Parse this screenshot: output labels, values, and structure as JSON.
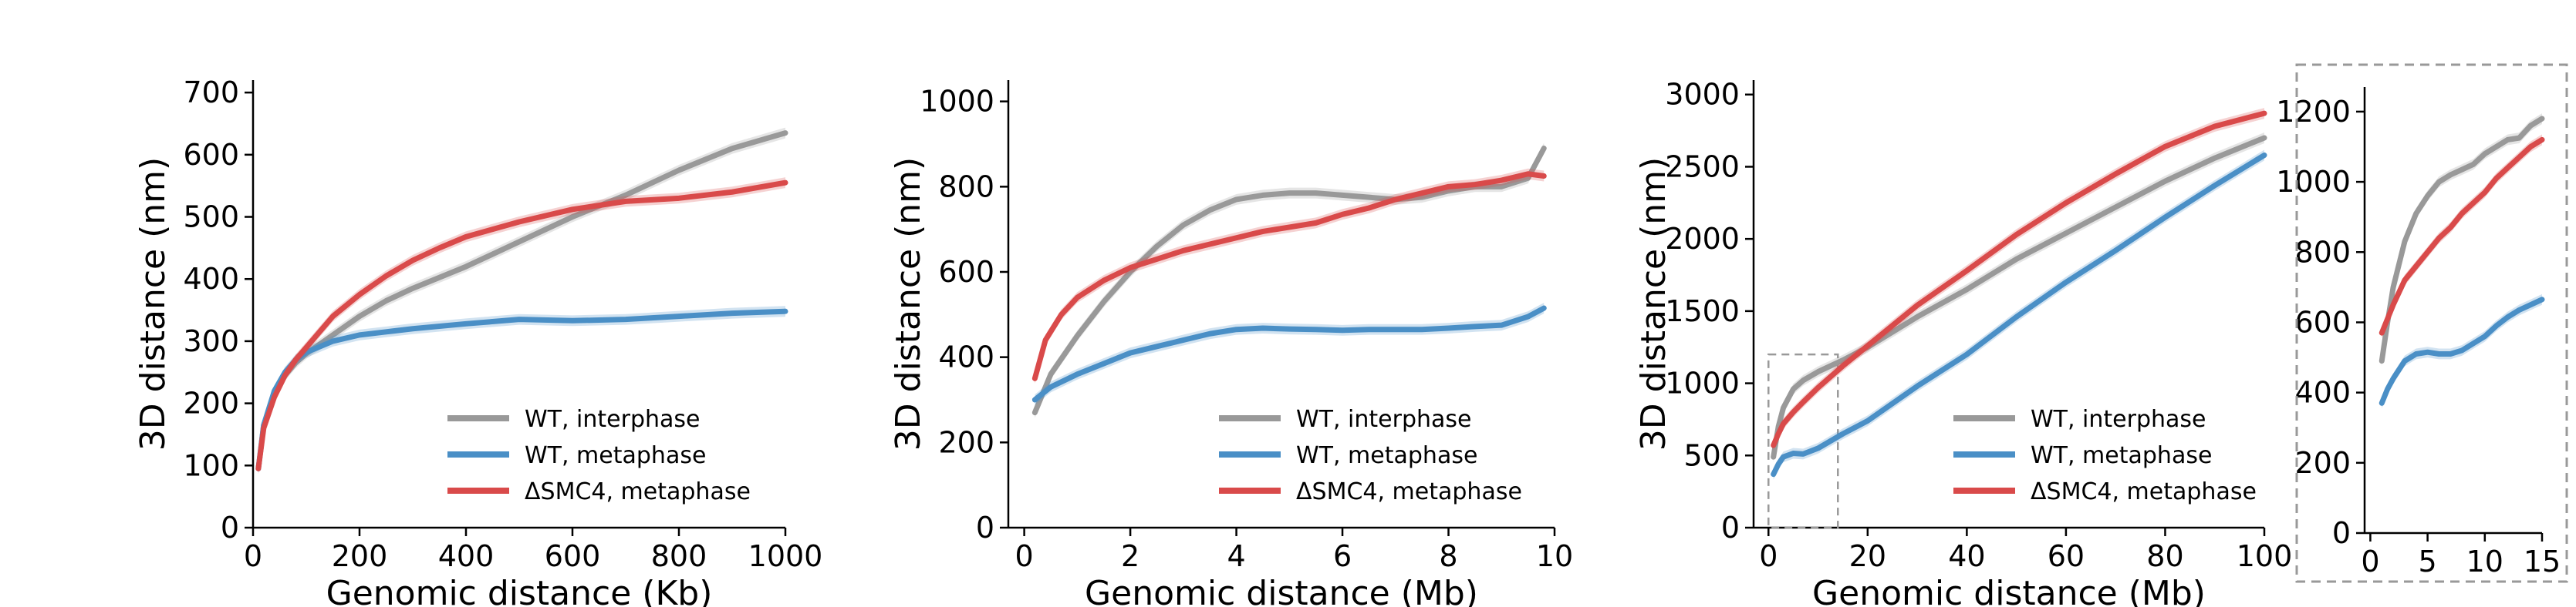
{
  "figure": {
    "colors": {
      "wt_interphase": "#999999",
      "wt_metaphase": "#4a8fc6",
      "dsmc4_metaphase": "#d94a4a",
      "inset_border": "#999999"
    }
  },
  "chart_data": [
    {
      "type": "line",
      "id": "panel-kb",
      "title": "",
      "xlabel": "Genomic distance (Kb)",
      "ylabel": "3D distance (nm)",
      "xlim": [
        0,
        1000
      ],
      "ylim": [
        0,
        720
      ],
      "xticks": [
        0,
        200,
        400,
        600,
        800,
        1000
      ],
      "yticks": [
        0,
        100,
        200,
        300,
        400,
        500,
        600,
        700
      ],
      "legend_position": "lower-right",
      "series": [
        {
          "name": "WT, interphase",
          "color": "#999999",
          "x": [
            10,
            20,
            40,
            60,
            80,
            100,
            150,
            200,
            250,
            300,
            400,
            500,
            600,
            700,
            800,
            900,
            1000
          ],
          "y": [
            95,
            165,
            215,
            245,
            265,
            280,
            310,
            340,
            365,
            385,
            420,
            460,
            500,
            535,
            575,
            610,
            635
          ]
        },
        {
          "name": "WT, metaphase",
          "color": "#4a8fc6",
          "x": [
            10,
            20,
            40,
            60,
            80,
            100,
            150,
            200,
            250,
            300,
            400,
            500,
            600,
            700,
            800,
            900,
            1000
          ],
          "y": [
            95,
            165,
            220,
            250,
            270,
            282,
            300,
            310,
            315,
            320,
            328,
            335,
            333,
            335,
            340,
            345,
            348
          ]
        },
        {
          "name": "ΔSMC4, metaphase",
          "color": "#d94a4a",
          "x": [
            10,
            20,
            40,
            60,
            80,
            100,
            150,
            200,
            250,
            300,
            350,
            400,
            500,
            600,
            700,
            800,
            900,
            1000
          ],
          "y": [
            95,
            160,
            210,
            245,
            270,
            290,
            340,
            375,
            405,
            430,
            450,
            468,
            492,
            512,
            525,
            530,
            540,
            555
          ]
        }
      ]
    },
    {
      "type": "line",
      "id": "panel-mb",
      "title": "",
      "xlabel": "Genomic distance (Mb)",
      "ylabel": "3D distance (nm)",
      "xlim": [
        -0.3,
        10
      ],
      "ylim": [
        0,
        1050
      ],
      "xticks": [
        0,
        2,
        4,
        6,
        8,
        10
      ],
      "yticks": [
        0,
        200,
        400,
        600,
        800,
        1000
      ],
      "legend_position": "lower-right",
      "series": [
        {
          "name": "WT, interphase",
          "color": "#999999",
          "x": [
            0.2,
            0.5,
            1,
            1.5,
            2,
            2.5,
            3,
            3.5,
            4,
            4.5,
            5,
            5.5,
            6,
            6.5,
            7,
            7.5,
            8,
            8.5,
            9,
            9.5,
            9.8
          ],
          "y": [
            270,
            360,
            450,
            530,
            600,
            660,
            710,
            745,
            770,
            780,
            785,
            785,
            780,
            775,
            770,
            775,
            790,
            800,
            800,
            820,
            890
          ]
        },
        {
          "name": "WT, metaphase",
          "color": "#4a8fc6",
          "x": [
            0.2,
            0.5,
            1,
            1.5,
            2,
            2.5,
            3,
            3.5,
            4,
            4.5,
            5,
            5.5,
            6,
            6.5,
            7,
            7.5,
            8,
            8.5,
            9,
            9.5,
            9.8
          ],
          "y": [
            300,
            330,
            360,
            385,
            410,
            425,
            440,
            455,
            465,
            468,
            466,
            465,
            463,
            465,
            465,
            465,
            468,
            472,
            475,
            495,
            515
          ]
        },
        {
          "name": "ΔSMC4, metaphase",
          "color": "#d94a4a",
          "x": [
            0.2,
            0.4,
            0.7,
            1,
            1.5,
            2,
            2.5,
            3,
            3.5,
            4,
            4.5,
            5,
            5.5,
            6,
            6.5,
            7,
            7.5,
            8,
            8.5,
            9,
            9.5,
            9.8
          ],
          "y": [
            350,
            440,
            500,
            540,
            580,
            610,
            630,
            650,
            665,
            680,
            695,
            705,
            715,
            735,
            750,
            770,
            785,
            800,
            805,
            815,
            830,
            825
          ]
        }
      ]
    },
    {
      "type": "line",
      "id": "panel-large-mb",
      "title": "",
      "xlabel": "Genomic distance (Mb)",
      "ylabel": "3D distance (nm)",
      "xlim": [
        -3,
        100
      ],
      "ylim": [
        0,
        3100
      ],
      "xticks": [
        0,
        20,
        40,
        60,
        80,
        100
      ],
      "yticks": [
        0,
        500,
        1000,
        1500,
        2000,
        2500,
        3000
      ],
      "legend_position": "lower-right",
      "zoom_box": {
        "x": [
          0,
          14
        ],
        "y": [
          0,
          1200
        ]
      },
      "series": [
        {
          "name": "WT, interphase",
          "color": "#999999",
          "x": [
            1,
            2,
            3,
            5,
            7,
            10,
            15,
            20,
            30,
            40,
            50,
            60,
            70,
            80,
            90,
            100
          ],
          "y": [
            490,
            700,
            830,
            960,
            1020,
            1080,
            1160,
            1250,
            1460,
            1650,
            1860,
            2040,
            2220,
            2400,
            2560,
            2700
          ]
        },
        {
          "name": "WT, metaphase",
          "color": "#4a8fc6",
          "x": [
            1,
            2,
            3,
            5,
            7,
            10,
            15,
            20,
            30,
            40,
            50,
            60,
            70,
            80,
            90,
            100
          ],
          "y": [
            370,
            440,
            490,
            515,
            510,
            550,
            650,
            740,
            980,
            1200,
            1460,
            1700,
            1920,
            2150,
            2370,
            2580
          ]
        },
        {
          "name": "ΔSMC4, metaphase",
          "color": "#d94a4a",
          "x": [
            1,
            2,
            3,
            5,
            7,
            10,
            15,
            20,
            30,
            40,
            50,
            60,
            70,
            80,
            90,
            100
          ],
          "y": [
            570,
            650,
            720,
            800,
            870,
            970,
            1120,
            1260,
            1540,
            1780,
            2030,
            2250,
            2450,
            2640,
            2780,
            2870
          ]
        }
      ]
    },
    {
      "type": "line",
      "id": "panel-inset",
      "title": "",
      "xlabel": "",
      "ylabel": "",
      "xlim": [
        -0.5,
        15
      ],
      "ylim": [
        0,
        1270
      ],
      "xticks": [
        0,
        5,
        10,
        15
      ],
      "yticks": [
        0,
        200,
        400,
        600,
        800,
        1000,
        1200
      ],
      "legend_position": "none",
      "series": [
        {
          "name": "WT, interphase",
          "color": "#999999",
          "x": [
            1,
            1.5,
            2,
            3,
            4,
            5,
            6,
            7,
            8,
            9,
            10,
            11,
            12,
            13,
            14,
            15
          ],
          "y": [
            490,
            600,
            700,
            830,
            910,
            960,
            1000,
            1020,
            1035,
            1050,
            1080,
            1100,
            1120,
            1125,
            1160,
            1180
          ]
        },
        {
          "name": "WT, metaphase",
          "color": "#4a8fc6",
          "x": [
            1,
            1.5,
            2,
            3,
            4,
            5,
            6,
            7,
            8,
            9,
            10,
            11,
            12,
            13,
            14,
            15
          ],
          "y": [
            370,
            410,
            440,
            490,
            510,
            515,
            510,
            510,
            520,
            540,
            560,
            590,
            615,
            635,
            650,
            665
          ]
        },
        {
          "name": "ΔSMC4, metaphase",
          "color": "#d94a4a",
          "x": [
            1,
            1.5,
            2,
            3,
            4,
            5,
            6,
            7,
            8,
            9,
            10,
            11,
            12,
            13,
            14,
            15
          ],
          "y": [
            570,
            610,
            650,
            720,
            760,
            800,
            840,
            870,
            910,
            940,
            970,
            1010,
            1040,
            1070,
            1100,
            1120
          ]
        }
      ]
    }
  ]
}
